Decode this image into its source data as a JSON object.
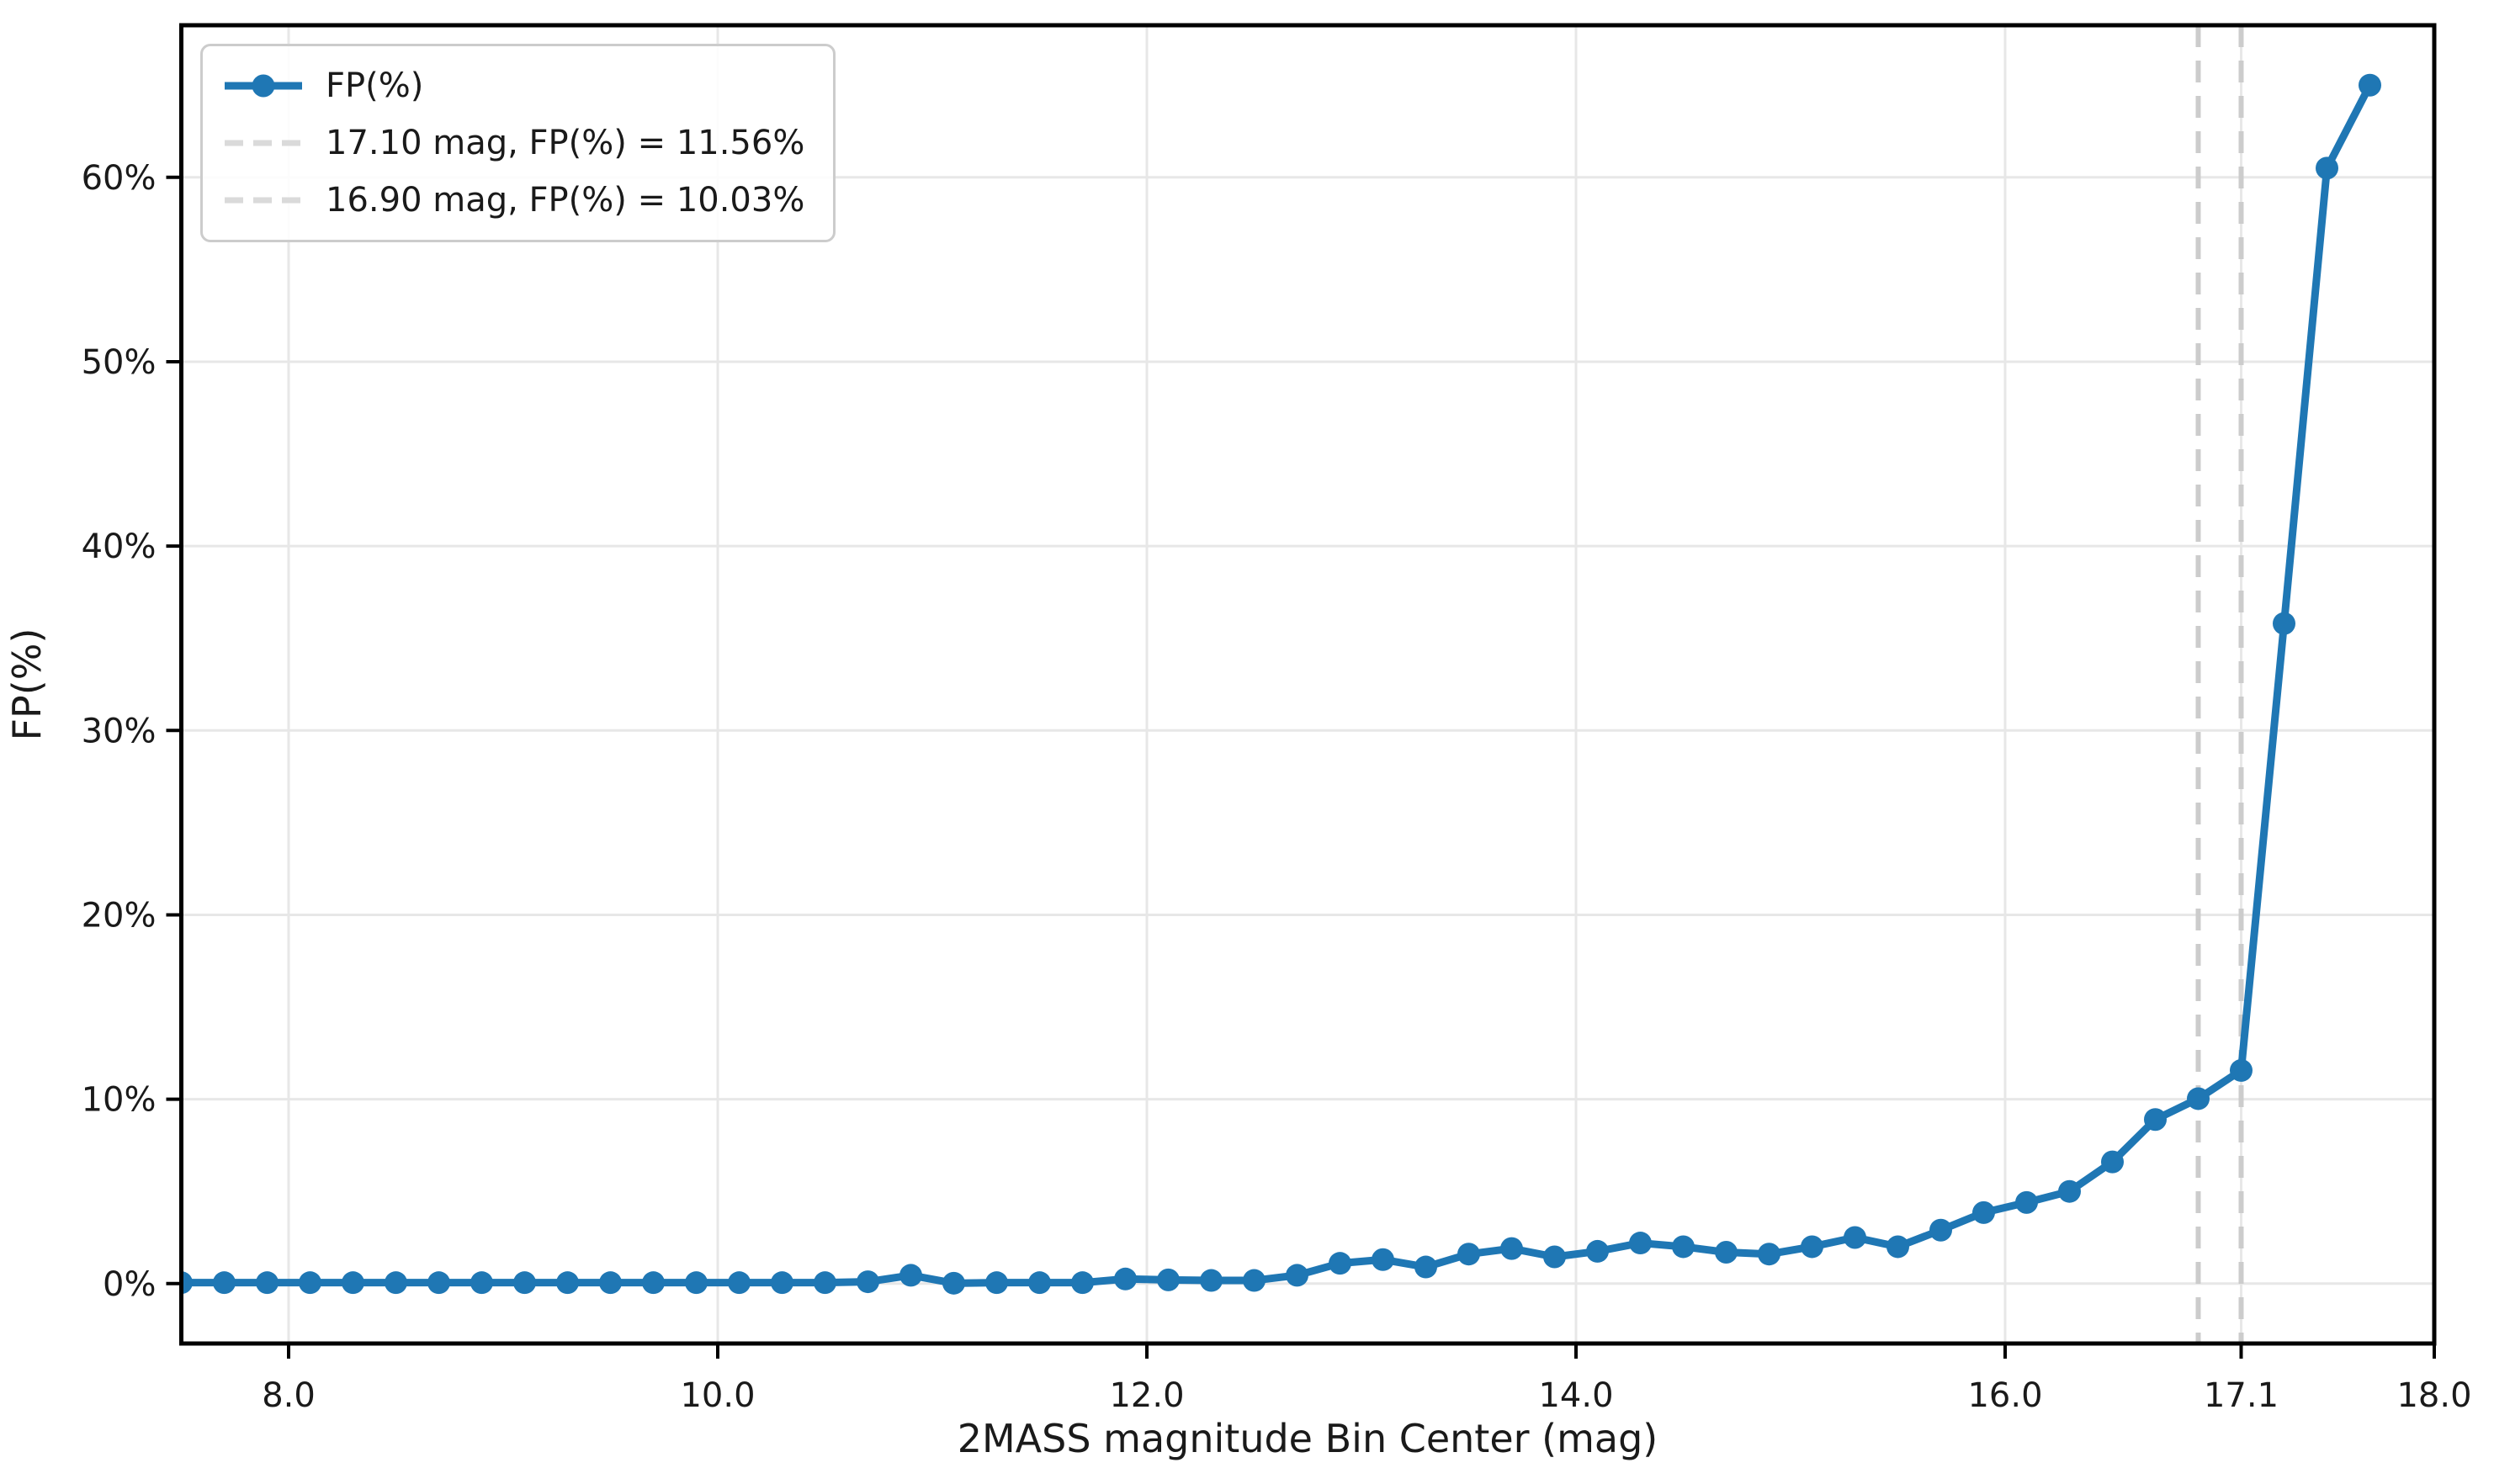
{
  "figure": {
    "background": "#ffffff"
  },
  "legend": {
    "entries": [
      {
        "label": "FP(%)",
        "type": "line-with-marker",
        "color": "#1f77b4"
      },
      {
        "label": "17.10 mag, FP(%) = 11.56%",
        "type": "dashed-line",
        "color": "#dadada"
      },
      {
        "label": "16.90 mag, FP(%) = 10.03%",
        "type": "dashed-line",
        "color": "#dadada"
      }
    ]
  },
  "chart_data": {
    "type": "line",
    "title": "",
    "xlabel": "2MASS magnitude Bin Center (mag)",
    "ylabel": "FP(%)",
    "xlim": [
      7.5,
      18.0
    ],
    "ylim": [
      -3.25,
      68.25
    ],
    "grid": true,
    "legend_position": "upper left",
    "xticks": [
      {
        "v": 8.0,
        "label": "8.0"
      },
      {
        "v": 10.0,
        "label": "10.0"
      },
      {
        "v": 12.0,
        "label": "12.0"
      },
      {
        "v": 14.0,
        "label": "14.0"
      },
      {
        "v": 16.0,
        "label": "16.0"
      },
      {
        "v": 17.1,
        "label": "17.1"
      },
      {
        "v": 18.0,
        "label": "18.0"
      }
    ],
    "yticks": [
      {
        "v": 0,
        "label": "0%"
      },
      {
        "v": 10,
        "label": "10%"
      },
      {
        "v": 20,
        "label": "20%"
      },
      {
        "v": 30,
        "label": "30%"
      },
      {
        "v": 40,
        "label": "40%"
      },
      {
        "v": 50,
        "label": "50%"
      },
      {
        "v": 60,
        "label": "60%"
      }
    ],
    "vlines": [
      {
        "x": 17.1,
        "note": "17.10 mag, FP(%) = 11.56%"
      },
      {
        "x": 16.9,
        "note": "16.90 mag, FP(%) = 10.03%"
      }
    ],
    "series": [
      {
        "name": "FP(%)",
        "color": "#1f77b4",
        "x": [
          7.5,
          7.7,
          7.9,
          8.1,
          8.3,
          8.5,
          8.7,
          8.9,
          9.1,
          9.3,
          9.5,
          9.7,
          9.9,
          10.1,
          10.3,
          10.5,
          10.7,
          10.9,
          11.1,
          11.3,
          11.5,
          11.7,
          11.9,
          12.1,
          12.3,
          12.5,
          12.7,
          12.9,
          13.1,
          13.3,
          13.5,
          13.7,
          13.9,
          14.1,
          14.3,
          14.5,
          14.7,
          14.9,
          15.1,
          15.3,
          15.5,
          15.7,
          15.9,
          16.1,
          16.3,
          16.5,
          16.7,
          16.9,
          17.1,
          17.3,
          17.5,
          17.7
        ],
        "y": [
          0.05,
          0.05,
          0.05,
          0.05,
          0.05,
          0.05,
          0.05,
          0.05,
          0.05,
          0.05,
          0.05,
          0.05,
          0.05,
          0.05,
          0.05,
          0.05,
          0.1,
          0.45,
          0.02,
          0.05,
          0.05,
          0.05,
          0.25,
          0.2,
          0.17,
          0.17,
          0.45,
          1.1,
          1.3,
          0.9,
          1.6,
          1.9,
          1.45,
          1.75,
          2.2,
          2.0,
          1.7,
          1.6,
          2.0,
          2.5,
          2.0,
          2.9,
          3.85,
          4.4,
          5.0,
          6.6,
          8.9,
          10.03,
          11.56,
          35.8,
          60.5,
          65.0
        ]
      }
    ]
  },
  "styles": {
    "grid_color": "#e7e7e7",
    "vline_color": "#cccccc",
    "spine_color": "#000000",
    "text_color": "#1a1a1a"
  }
}
